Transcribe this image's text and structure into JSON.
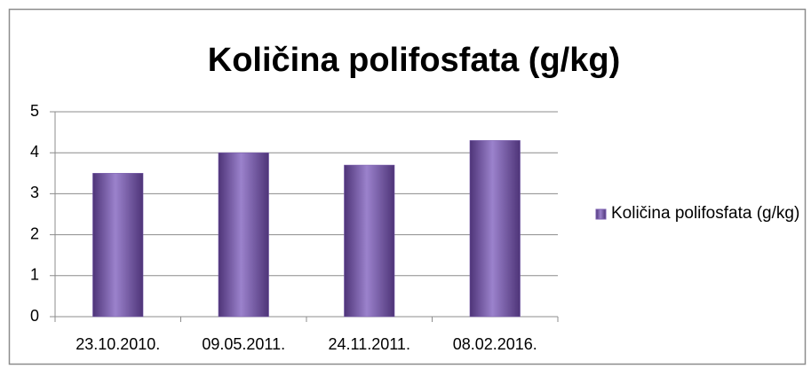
{
  "chart_data": {
    "type": "bar",
    "title": "Količina polifosfata (g/kg)",
    "categories": [
      "23.10.2010.",
      "09.05.2011.",
      "24.11.2011.",
      "08.02.2016."
    ],
    "series": [
      {
        "name": "Količina polifosfata (g/kg)",
        "color": "#7b5fb0",
        "values": [
          3.5,
          4.0,
          3.7,
          4.3
        ]
      }
    ],
    "ylim": [
      0,
      5
    ],
    "yticks": [
      0,
      1,
      2,
      3,
      4,
      5
    ],
    "grid": true,
    "legend": "right"
  }
}
